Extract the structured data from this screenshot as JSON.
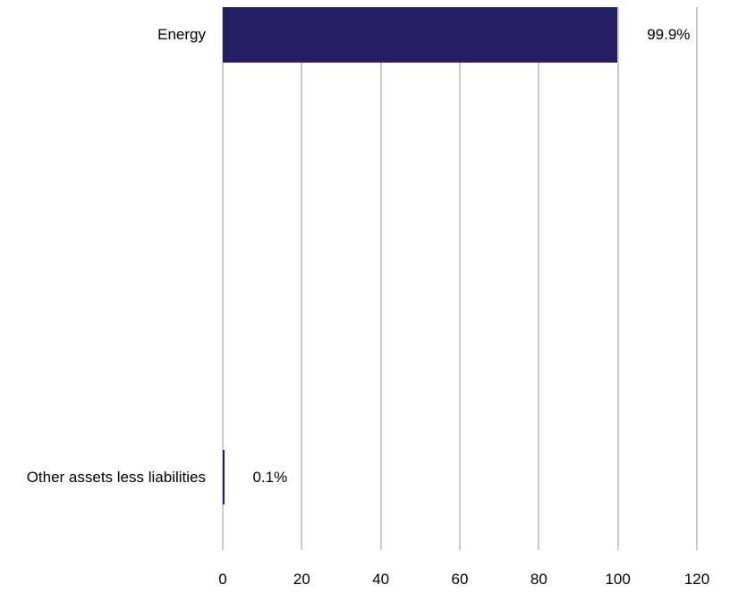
{
  "chart_data": {
    "type": "bar",
    "orientation": "horizontal",
    "title": "",
    "xlabel": "",
    "ylabel": "",
    "legend": "none",
    "grid": "vertical",
    "categories": [
      "Energy",
      "Other assets less liabilities"
    ],
    "values": [
      99.9,
      0.1
    ],
    "value_labels": [
      "99.9%",
      "0.1%"
    ],
    "x_ticks": [
      "0",
      "20",
      "40",
      "60",
      "80",
      "100",
      "120"
    ],
    "x_tick_values": [
      0,
      20,
      40,
      60,
      80,
      100,
      120
    ],
    "xlim": [
      0,
      120
    ]
  },
  "colors": {
    "bar": "#251d62",
    "gridline": "#c9c9c9",
    "text": "#000000",
    "background": "#ffffff"
  }
}
